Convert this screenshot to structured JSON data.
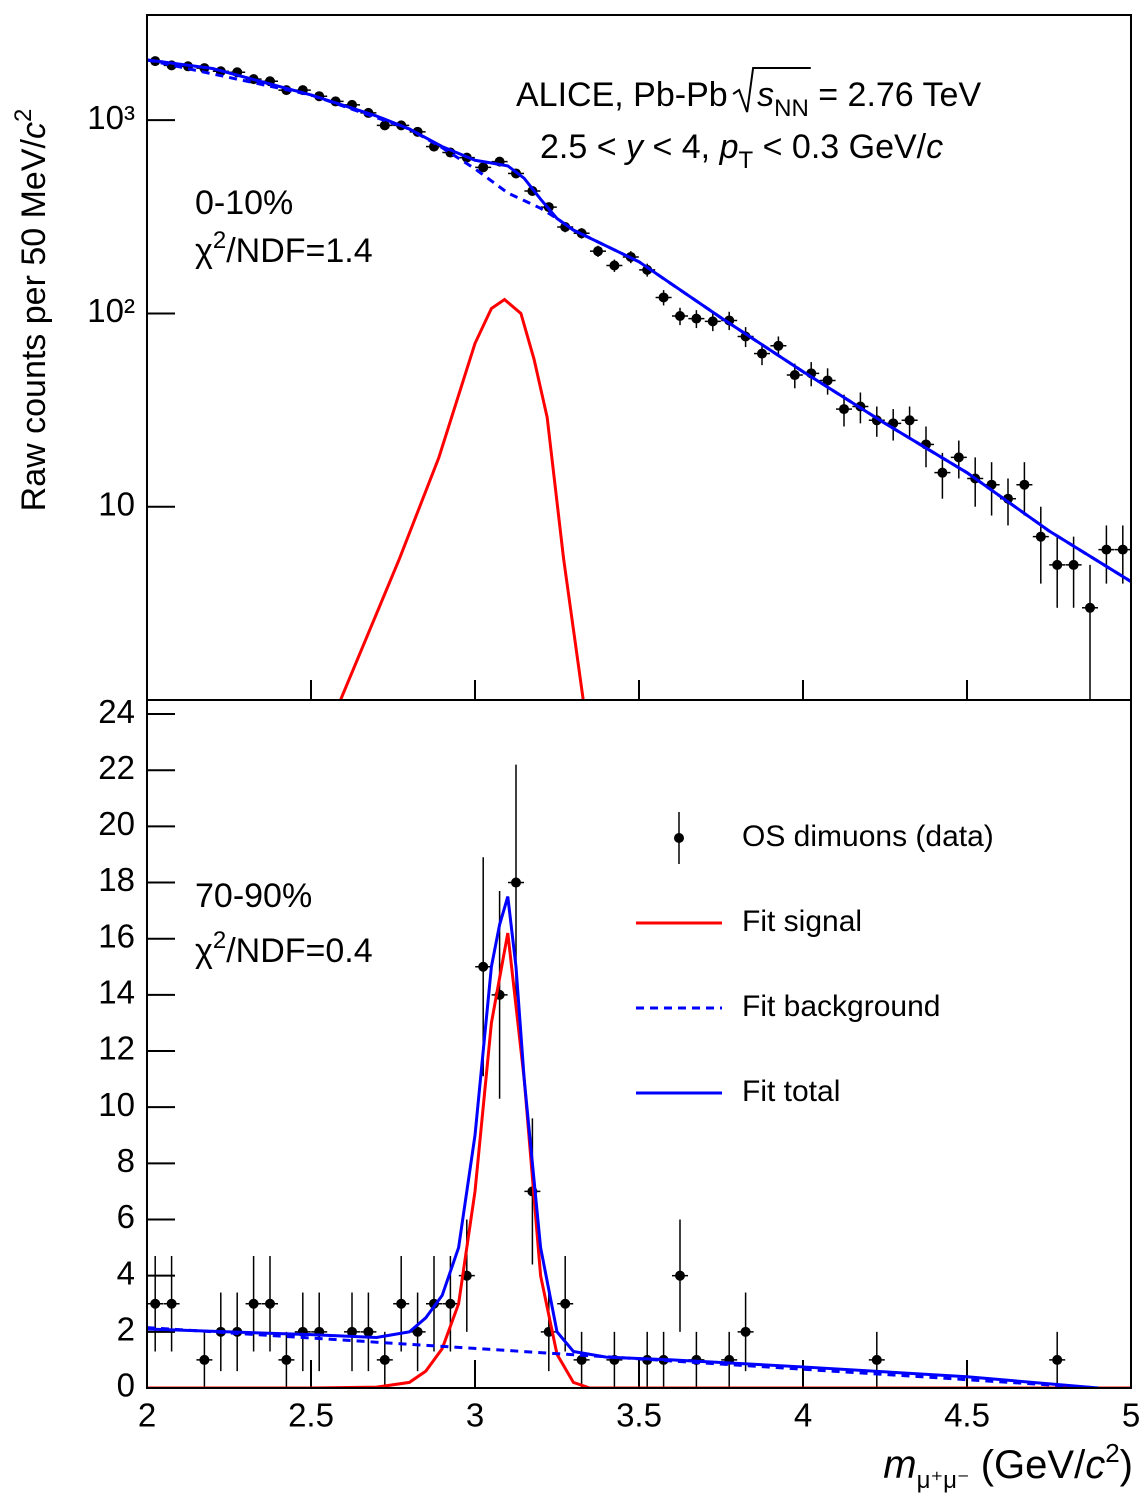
{
  "chart_data": [
    {
      "type": "scatter",
      "log_y": true,
      "xlim": [
        2,
        5
      ],
      "ylim": [
        1,
        3500
      ],
      "yticks": [
        10,
        {
          "value": 100,
          "label": "10²"
        },
        {
          "value": 1000,
          "label": "10³"
        }
      ],
      "ylabel": [
        "Raw counts per 50 MeV/",
        "c",
        "2"
      ],
      "annotations": [
        {
          "parts": [
            "ALICE, Pb-Pb ",
            "s",
            "NN",
            " = 2.76 TeV"
          ]
        },
        {
          "parts": [
            "2.5 < ",
            "y",
            " < 4, ",
            "p",
            "T",
            " < 0.3 GeV/",
            "c"
          ]
        },
        {
          "parts": [
            "0-10%"
          ]
        },
        {
          "parts": [
            "χ",
            "2",
            "/NDF=1.4"
          ]
        }
      ],
      "series": [
        {
          "type": "errorbar",
          "color": "#000000",
          "x": [
            2.025,
            2.075,
            2.125,
            2.175,
            2.225,
            2.275,
            2.325,
            2.375,
            2.425,
            2.475,
            2.525,
            2.575,
            2.625,
            2.675,
            2.725,
            2.775,
            2.825,
            2.875,
            2.925,
            2.975,
            3.025,
            3.075,
            3.125,
            3.175,
            3.225,
            3.275,
            3.325,
            3.375,
            3.425,
            3.475,
            3.525,
            3.575,
            3.625,
            3.675,
            3.725,
            3.775,
            3.825,
            3.875,
            3.925,
            3.975,
            4.025,
            4.075,
            4.125,
            4.175,
            4.225,
            4.275,
            4.325,
            4.375,
            4.425,
            4.475,
            4.525,
            4.575,
            4.625,
            4.675,
            4.725,
            4.775,
            4.825,
            4.875,
            4.925,
            4.975
          ],
          "values": [
            2020,
            1920,
            1900,
            1860,
            1790,
            1770,
            1630,
            1590,
            1430,
            1430,
            1330,
            1250,
            1200,
            1090,
            940,
            940,
            870,
            730,
            680,
            640,
            570,
            610,
            530,
            430,
            355,
            280,
            260,
            210,
            177,
            196,
            168,
            121,
            97,
            94,
            91,
            92,
            76,
            62,
            68,
            48,
            49,
            45,
            32,
            33,
            28,
            27,
            28,
            21,
            15,
            18,
            14,
            13,
            11,
            13,
            7,
            5,
            5,
            3,
            6,
            6
          ],
          "errors": [
            45,
            44,
            44,
            43,
            42,
            42,
            40,
            40,
            38,
            38,
            36,
            35,
            35,
            33,
            31,
            31,
            29,
            27,
            26,
            25,
            24,
            25,
            23,
            21,
            19,
            17,
            16,
            14,
            13,
            14,
            13,
            11,
            10,
            10,
            10,
            10,
            9,
            8,
            8,
            7,
            7,
            7,
            6,
            6,
            5,
            5,
            5,
            5,
            4,
            4,
            4,
            4,
            3,
            4,
            3,
            2,
            2,
            2,
            2,
            2
          ]
        },
        {
          "type": "line",
          "style": "solid",
          "color": "#ff0000",
          "x": [
            2.59,
            2.77,
            2.89,
            3.0,
            3.05,
            3.09,
            3.14,
            3.18,
            3.22,
            3.27,
            3.33
          ],
          "values": [
            1,
            5.4,
            18,
            70,
            106,
            118,
            100,
            58,
            29,
            5.4,
            1
          ]
        },
        {
          "type": "line",
          "style": "dashed",
          "color": "#0000ff",
          "x": [
            2.0,
            2.5,
            2.8,
            2.9,
            3.0,
            3.1,
            3.2,
            3.25,
            3.3,
            3.5,
            3.75,
            4.0,
            4.25,
            4.5,
            4.75,
            5.0
          ],
          "values": [
            2050,
            1350,
            900,
            720,
            560,
            420,
            350,
            310,
            270,
            185,
            95,
            50,
            27,
            15,
            7.5,
            4.1
          ]
        },
        {
          "type": "line",
          "style": "solid",
          "color": "#0000ff",
          "x": [
            2.0,
            2.2,
            2.5,
            2.7,
            2.8,
            2.9,
            3.0,
            3.05,
            3.1,
            3.15,
            3.2,
            3.25,
            3.3,
            3.5,
            3.75,
            4.0,
            4.25,
            4.5,
            4.75,
            5.0
          ],
          "values": [
            2050,
            1850,
            1350,
            1050,
            900,
            730,
            620,
            600,
            580,
            500,
            390,
            310,
            270,
            185,
            95,
            50,
            27,
            15,
            7.5,
            4.1
          ]
        }
      ]
    },
    {
      "type": "scatter",
      "log_y": false,
      "xlim": [
        2,
        5
      ],
      "ylim": [
        0,
        24.5
      ],
      "xticks": [
        2,
        2.5,
        3,
        3.5,
        4,
        4.5,
        5
      ],
      "yticks": [
        0,
        2,
        4,
        6,
        8,
        10,
        12,
        14,
        16,
        18,
        20,
        22,
        24
      ],
      "xlabel": [
        "m",
        "μ⁺μ⁻",
        " (GeV/",
        "c",
        "2",
        ")"
      ],
      "legend": "upper right",
      "annotations": [
        {
          "parts": [
            "70-90%"
          ]
        },
        {
          "parts": [
            "χ",
            "2",
            "/NDF=0.4"
          ]
        }
      ],
      "series": [
        {
          "type": "errorbar",
          "name": "OS dimuons (data)",
          "color": "#000000",
          "x": [
            2.025,
            2.075,
            2.125,
            2.175,
            2.225,
            2.275,
            2.325,
            2.375,
            2.425,
            2.475,
            2.525,
            2.575,
            2.625,
            2.675,
            2.725,
            2.775,
            2.825,
            2.875,
            2.925,
            2.975,
            3.025,
            3.075,
            3.125,
            3.175,
            3.225,
            3.275,
            3.325,
            3.375,
            3.425,
            3.475,
            3.525,
            3.575,
            3.625,
            3.675,
            3.725,
            3.775,
            3.825,
            3.875,
            3.925,
            3.975,
            4.025,
            4.075,
            4.125,
            4.175,
            4.225,
            4.275,
            4.325,
            4.375,
            4.425,
            4.475,
            4.525,
            4.575,
            4.625,
            4.675,
            4.725,
            4.775,
            4.825,
            4.875,
            4.925,
            4.975
          ],
          "values": [
            3,
            3,
            null,
            1,
            2,
            2,
            3,
            3,
            1,
            2,
            2,
            null,
            2,
            2,
            1,
            3,
            2,
            3,
            3,
            4,
            15,
            14,
            18,
            7,
            2,
            3,
            1,
            null,
            1,
            null,
            1,
            1,
            4,
            1,
            null,
            1,
            2,
            null,
            null,
            null,
            null,
            null,
            null,
            null,
            1,
            null,
            null,
            null,
            null,
            null,
            null,
            null,
            null,
            null,
            null,
            1,
            null,
            null,
            null,
            null
          ],
          "errors": [
            1.7,
            1.7,
            null,
            1,
            1.4,
            1.4,
            1.7,
            1.7,
            1,
            1.4,
            1.4,
            null,
            1.4,
            1.4,
            1,
            1.7,
            1.4,
            1.7,
            1.7,
            2,
            3.9,
            3.7,
            4.2,
            2.6,
            1.4,
            1.7,
            1,
            null,
            1,
            null,
            1,
            1,
            2,
            1,
            null,
            1,
            1.4,
            null,
            null,
            null,
            null,
            null,
            null,
            null,
            1,
            null,
            null,
            null,
            null,
            null,
            null,
            null,
            null,
            null,
            null,
            1,
            null,
            null,
            null,
            null
          ]
        },
        {
          "type": "line",
          "style": "solid",
          "name": "Fit signal",
          "color": "#ff0000",
          "x": [
            2.0,
            2.5,
            2.7,
            2.8,
            2.85,
            2.9,
            2.95,
            3.0,
            3.05,
            3.1,
            3.15,
            3.2,
            3.25,
            3.3,
            3.35,
            5.0
          ],
          "values": [
            0,
            0,
            0.03,
            0.2,
            0.6,
            1.4,
            3,
            7,
            13,
            16.2,
            11,
            4,
            1.2,
            0.2,
            0,
            0
          ]
        },
        {
          "type": "line",
          "style": "dashed",
          "name": "Fit background",
          "color": "#0000ff",
          "x": [
            2.0,
            4.9
          ],
          "values": [
            2.15,
            0
          ]
        },
        {
          "type": "line",
          "style": "solid",
          "name": "Fit total",
          "color": "#0000ff",
          "x": [
            2.0,
            2.5,
            2.7,
            2.8,
            2.85,
            2.9,
            2.95,
            3.0,
            3.05,
            3.075,
            3.1,
            3.125,
            3.15,
            3.2,
            3.25,
            3.3,
            3.4,
            3.6,
            4.0,
            4.5,
            4.9
          ],
          "values": [
            2.1,
            1.9,
            1.8,
            2.0,
            2.5,
            3.3,
            5,
            9,
            15,
            16.5,
            17.5,
            15,
            11,
            5,
            2,
            1.3,
            1.1,
            1.0,
            0.75,
            0.4,
            0
          ]
        }
      ]
    }
  ]
}
